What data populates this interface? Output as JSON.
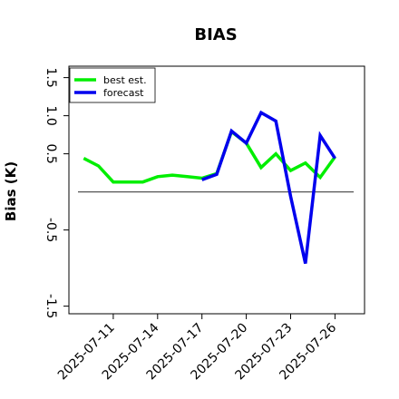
{
  "chart_data": {
    "type": "line",
    "title": "BIAS",
    "ylabel": "Bias (K)",
    "xlabel": "",
    "ylim": [
      -1.6,
      1.65
    ],
    "yticks": [
      -1.5,
      -0.5,
      0.5,
      1.0,
      1.5
    ],
    "ytick_labels": [
      "-1.5",
      "-0.5",
      "0.5",
      "1.0",
      "1.5"
    ],
    "xlim": [
      "2025-07-08",
      "2025-07-28"
    ],
    "xticks": [
      "2025-07-11",
      "2025-07-14",
      "2025-07-17",
      "2025-07-20",
      "2025-07-23",
      "2025-07-26"
    ],
    "highlight_xtick": "2025-07-17",
    "highlight_color": "#228b22",
    "reference_line_y": 0,
    "grid": false,
    "legend_placement": "top-left",
    "series": [
      {
        "name": "best est.",
        "color": "#00ee00",
        "x": [
          "2025-07-09",
          "2025-07-10",
          "2025-07-11",
          "2025-07-12",
          "2025-07-13",
          "2025-07-14",
          "2025-07-15",
          "2025-07-16",
          "2025-07-17",
          "2025-07-18",
          "2025-07-19",
          "2025-07-20",
          "2025-07-21",
          "2025-07-22",
          "2025-07-23",
          "2025-07-24",
          "2025-07-25",
          "2025-07-26"
        ],
        "values": [
          0.44,
          0.34,
          0.13,
          0.13,
          0.13,
          0.2,
          0.22,
          0.2,
          0.18,
          0.24,
          0.79,
          0.64,
          0.32,
          0.5,
          0.28,
          0.38,
          0.19,
          0.46
        ]
      },
      {
        "name": "forecast",
        "color": "#0000ee",
        "x": [
          "2025-07-17",
          "2025-07-18",
          "2025-07-19",
          "2025-07-20",
          "2025-07-21",
          "2025-07-22",
          "2025-07-23",
          "2025-07-24",
          "2025-07-25",
          "2025-07-26"
        ],
        "values": [
          0.16,
          0.23,
          0.8,
          0.64,
          1.04,
          0.93,
          -0.06,
          -0.94,
          0.74,
          0.44
        ]
      }
    ]
  }
}
